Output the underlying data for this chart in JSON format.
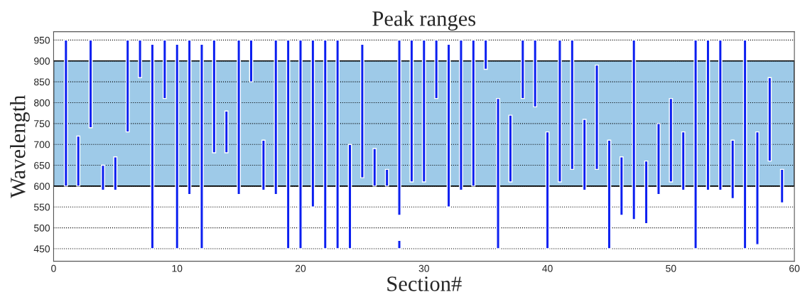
{
  "chart_data": {
    "type": "bar",
    "title": "Peak ranges",
    "xlabel": "Section#",
    "ylabel": "Wavelength",
    "xlim": [
      0,
      60
    ],
    "xticks": [
      0,
      10,
      20,
      30,
      40,
      50,
      60
    ],
    "ylim": [
      420,
      970
    ],
    "yticks": [
      450,
      500,
      550,
      600,
      650,
      700,
      750,
      800,
      850,
      900,
      950
    ],
    "grid": "y",
    "bands": [
      {
        "axis": "y",
        "from": 600,
        "to": 900,
        "color": "#9ecae8"
      }
    ],
    "series": [
      {
        "color": "#0a1ef0",
        "x": [
          1,
          2,
          3,
          4,
          5,
          6,
          7,
          8,
          9,
          10,
          11,
          12,
          13,
          14,
          15,
          16,
          17,
          18,
          19,
          20,
          21,
          22,
          23,
          24,
          25,
          26,
          27,
          28,
          29,
          30,
          31,
          32,
          33,
          34,
          35,
          36,
          37,
          38,
          39,
          40,
          41,
          42,
          43,
          44,
          45,
          46,
          47,
          48,
          49,
          50,
          51,
          52,
          53,
          54,
          55,
          56,
          57,
          58,
          59
        ],
        "base": [
          600,
          600,
          740,
          590,
          590,
          730,
          860,
          450,
          810,
          450,
          580,
          450,
          680,
          680,
          580,
          850,
          590,
          580,
          450,
          450,
          550,
          450,
          450,
          450,
          620,
          600,
          600,
          530,
          610,
          610,
          810,
          550,
          590,
          600,
          880,
          450,
          610,
          810,
          790,
          450,
          610,
          640,
          590,
          640,
          450,
          530,
          520,
          510,
          580,
          610,
          590,
          450,
          590,
          590,
          570,
          450,
          460,
          660,
          560
        ],
        "values": [
          350,
          120,
          210,
          60,
          80,
          220,
          90,
          490,
          140,
          490,
          370,
          490,
          270,
          100,
          370,
          100,
          120,
          370,
          500,
          500,
          400,
          500,
          500,
          250,
          320,
          90,
          40,
          420,
          340,
          340,
          140,
          390,
          360,
          350,
          70,
          360,
          160,
          140,
          160,
          280,
          340,
          310,
          170,
          250,
          260,
          140,
          430,
          150,
          170,
          200,
          140,
          500,
          360,
          360,
          140,
          500,
          270,
          200,
          80
        ]
      },
      {
        "color": "#0a1ef0",
        "x": [
          28
        ],
        "base": [
          450
        ],
        "values": [
          20
        ]
      }
    ]
  }
}
